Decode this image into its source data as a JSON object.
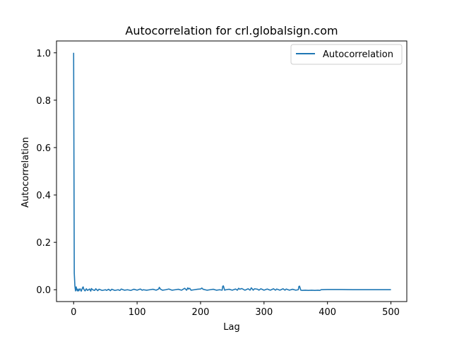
{
  "chart_data": {
    "type": "line",
    "title": "Autocorrelation for crl.globalsign.com",
    "xlabel": "Lag",
    "ylabel": "Autocorrelation",
    "xlim": [
      -27,
      525
    ],
    "ylim": [
      -0.05,
      1.05
    ],
    "xticks": [
      0,
      100,
      200,
      300,
      400,
      500
    ],
    "yticks": [
      0.0,
      0.2,
      0.4,
      0.6,
      0.8,
      1.0
    ],
    "ytick_labels": [
      "0.0",
      "0.2",
      "0.4",
      "0.6",
      "0.8",
      "1.0"
    ],
    "grid": false,
    "legend": "upper right",
    "series": [
      {
        "name": "Autocorrelation",
        "color": "#1f77b4",
        "x": [
          0,
          1,
          2,
          3,
          4,
          5,
          6,
          7,
          8,
          9,
          10,
          12,
          14,
          15,
          16,
          18,
          20,
          22,
          25,
          27,
          28,
          30,
          33,
          35,
          38,
          40,
          45,
          50,
          52,
          55,
          58,
          60,
          65,
          70,
          73,
          75,
          80,
          85,
          90,
          95,
          100,
          105,
          108,
          110,
          115,
          120,
          125,
          130,
          134,
          135,
          137,
          140,
          145,
          150,
          155,
          160,
          165,
          170,
          175,
          178,
          180,
          181,
          183,
          185,
          190,
          195,
          200,
          202,
          204,
          210,
          215,
          220,
          225,
          230,
          234,
          235,
          236,
          238,
          240,
          245,
          250,
          255,
          258,
          260,
          262,
          265,
          270,
          275,
          278,
          280,
          283,
          285,
          290,
          292,
          295,
          300,
          305,
          310,
          315,
          318,
          320,
          325,
          330,
          333,
          335,
          340,
          345,
          350,
          354,
          355,
          356,
          358,
          360,
          365,
          370,
          375,
          380,
          385,
          388,
          390,
          400,
          420,
          440,
          460,
          480,
          500
        ],
        "y": [
          1.0,
          0.07,
          0.015,
          -0.005,
          0.012,
          0.0,
          -0.005,
          0.003,
          -0.005,
          0.0,
          0.004,
          -0.006,
          0.008,
          0.012,
          0.002,
          -0.005,
          0.004,
          -0.003,
          0.003,
          -0.006,
          0.005,
          0.0,
          -0.003,
          0.004,
          -0.004,
          0.002,
          -0.003,
          0.0,
          -0.003,
          0.002,
          -0.004,
          0.002,
          -0.003,
          0.0,
          -0.003,
          0.003,
          -0.002,
          0.0,
          -0.003,
          0.002,
          -0.002,
          0.003,
          -0.002,
          0.0,
          -0.002,
          0.0,
          0.002,
          -0.002,
          0.003,
          0.01,
          0.002,
          -0.002,
          0.0,
          0.003,
          -0.002,
          0.0,
          0.002,
          -0.002,
          0.006,
          -0.002,
          0.008,
          0.003,
          0.006,
          -0.002,
          0.0,
          0.002,
          0.003,
          0.007,
          0.002,
          -0.002,
          0.0,
          0.002,
          -0.002,
          0.0,
          -0.002,
          0.015,
          0.016,
          -0.002,
          0.0,
          0.002,
          -0.002,
          0.003,
          -0.002,
          0.006,
          0.002,
          0.005,
          -0.002,
          0.004,
          -0.002,
          0.008,
          -0.002,
          0.004,
          0.002,
          -0.002,
          0.004,
          -0.002,
          0.003,
          -0.002,
          0.004,
          -0.002,
          0.003,
          -0.002,
          0.004,
          -0.002,
          0.003,
          -0.002,
          0.002,
          -0.002,
          0.0,
          0.014,
          0.015,
          -0.002,
          -0.003,
          -0.002,
          -0.003,
          -0.002,
          -0.003,
          -0.002,
          -0.003,
          0.0,
          0.001,
          0.001,
          0.0,
          0.0,
          0.0,
          0.0
        ]
      }
    ]
  }
}
